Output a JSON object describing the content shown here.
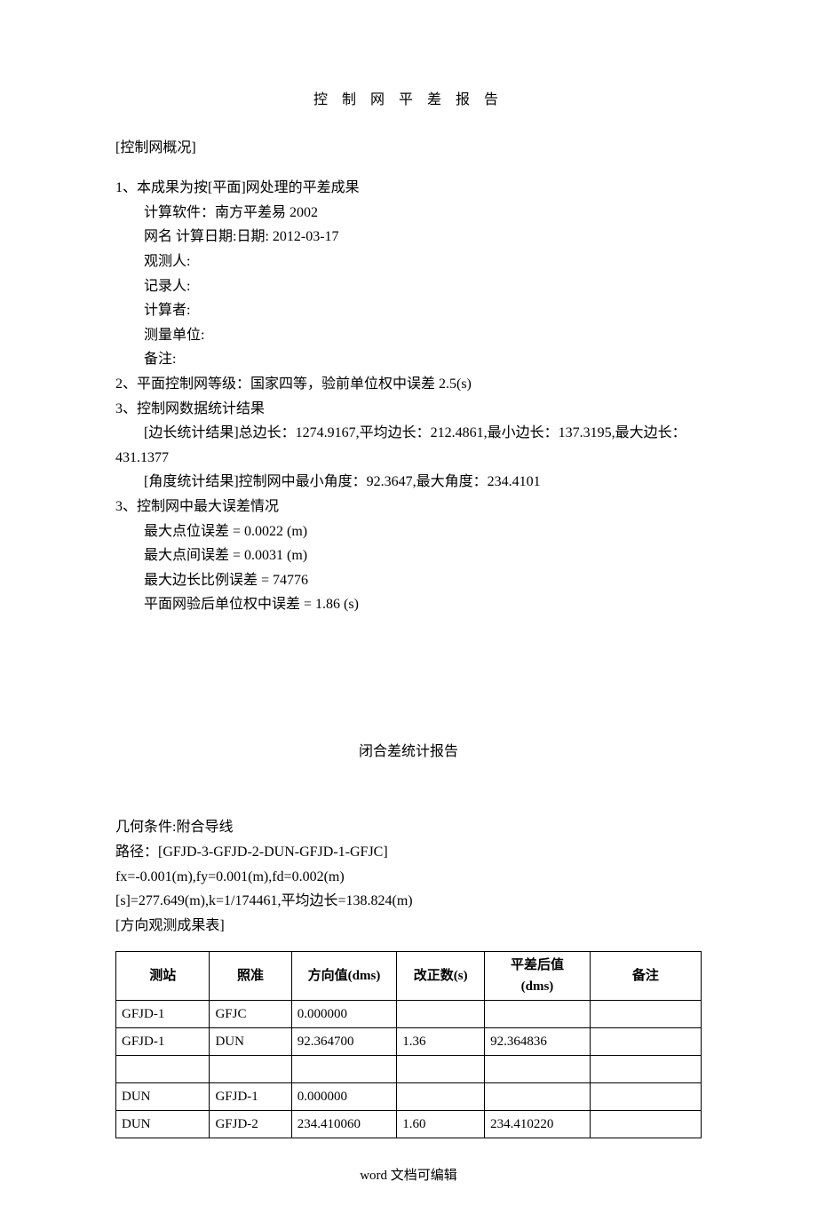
{
  "doc": {
    "title": "控 制 网 平 差 报 告",
    "overview_label": "[控制网概况]",
    "item1_lead": "1、本成果为按[平面]网处理的平差成果",
    "software_label": "计算软件：南方平差易 2002",
    "netname_label": "网名      计算日期:日期: 2012-03-17",
    "observer_label": "观测人:",
    "recorder_label": "记录人:",
    "calculator_label": "计算者:",
    "unit_label": "测量单位:",
    "remark_label": "备注:",
    "item2": "2、平面控制网等级：国家四等，验前单位权中误差 2.5(s)",
    "item3_lead": "3、控制网数据统计结果",
    "edge_stats_a": "[边长统计结果]总边长：1274.9167,平均边长：212.4861,最小边长：137.3195,最大边长：",
    "edge_stats_b": "431.1377",
    "angle_stats": "[角度统计结果]控制网中最小角度：92.3647,最大角度：234.4101",
    "item3b_lead": "3、控制网中最大误差情况",
    "max_point_err": "最大点位误差 =    0.0022 (m)",
    "max_inter_err": "最大点间误差 =    0.0031 (m)",
    "max_edge_ratio": "最大边长比例误差 =    74776",
    "post_unit_err": "平面网验后单位权中误差 =    1.86 (s)",
    "closure_title": "闭合差统计报告",
    "geom_cond": "几何条件:附合导线",
    "path": "路径：[GFJD-3-GFJD-2-DUN-GFJD-1-GFJC]",
    "fxfyfd": "fx=-0.001(m),fy=0.001(m),fd=0.002(m)",
    "sk": "[s]=277.649(m),k=1/174461,平均边长=138.824(m)",
    "dir_obs_label": "[方向观测成果表]",
    "footer": "word 文档可编辑"
  },
  "table": {
    "headers": {
      "station": "测站",
      "target": "照准",
      "direction": "方向值(dms)",
      "correction": "改正数(s)",
      "adjusted_a": "平差后值",
      "adjusted_b": "(dms)",
      "remark": "备注"
    },
    "col_widths": [
      "16%",
      "14%",
      "18%",
      "15%",
      "18%",
      "19%"
    ],
    "rows": [
      {
        "station": "GFJD-1",
        "target": "GFJC",
        "direction": "0.000000",
        "correction": "",
        "adjusted": "",
        "remark": ""
      },
      {
        "station": "GFJD-1",
        "target": "DUN",
        "direction": "92.364700",
        "correction": "1.36",
        "adjusted": "92.364836",
        "remark": ""
      },
      {
        "station": "",
        "target": "",
        "direction": "",
        "correction": "",
        "adjusted": "",
        "remark": ""
      },
      {
        "station": "DUN",
        "target": "GFJD-1",
        "direction": "0.000000",
        "correction": "",
        "adjusted": "",
        "remark": ""
      },
      {
        "station": "DUN",
        "target": "GFJD-2",
        "direction": "234.410060",
        "correction": "1.60",
        "adjusted": "234.410220",
        "remark": ""
      }
    ]
  }
}
